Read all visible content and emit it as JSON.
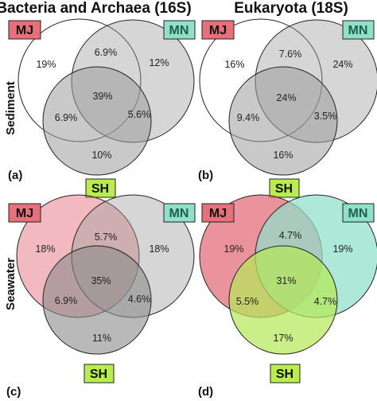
{
  "column_titles": [
    "Bacteria and Archaea (16S)",
    "Eukaryota (18S)"
  ],
  "row_titles": [
    "Sediment",
    "Seawater"
  ],
  "set_labels": {
    "mj": "MJ",
    "mn": "MN",
    "sh": "SH"
  },
  "colors": {
    "mj_tag": "#e8707a",
    "mn_tag": "#8fe0c7",
    "sh_tag": "#b9ec4f",
    "grey_fill": "#9d9d9d",
    "mj_pink": "#e46f7b",
    "mn_teal": "#8fdfc9",
    "sh_green": "#b6e85a",
    "outline": "#222222"
  },
  "panels": [
    {
      "letter": "(a)",
      "only_mj": "19%",
      "only_mn": "12%",
      "only_sh": "10%",
      "mj_mn": "6.9%",
      "mj_sh": "6.9%",
      "mn_sh": "5.6%",
      "all": "39%"
    },
    {
      "letter": "(b)",
      "only_mj": "16%",
      "only_mn": "24%",
      "only_sh": "16%",
      "mj_mn": "7.6%",
      "mj_sh": "9.4%",
      "mn_sh": "3.5%",
      "all": "24%"
    },
    {
      "letter": "(c)",
      "only_mj": "18%",
      "only_mn": "18%",
      "only_sh": "11%",
      "mj_mn": "5.7%",
      "mj_sh": "6.9%",
      "mn_sh": "4.6%",
      "all": "35%"
    },
    {
      "letter": "(d)",
      "only_mj": "19%",
      "only_mn": "19%",
      "only_sh": "17%",
      "mj_mn": "4.7%",
      "mj_sh": "5.5%",
      "mn_sh": "4.7%",
      "all": "31%"
    }
  ]
}
